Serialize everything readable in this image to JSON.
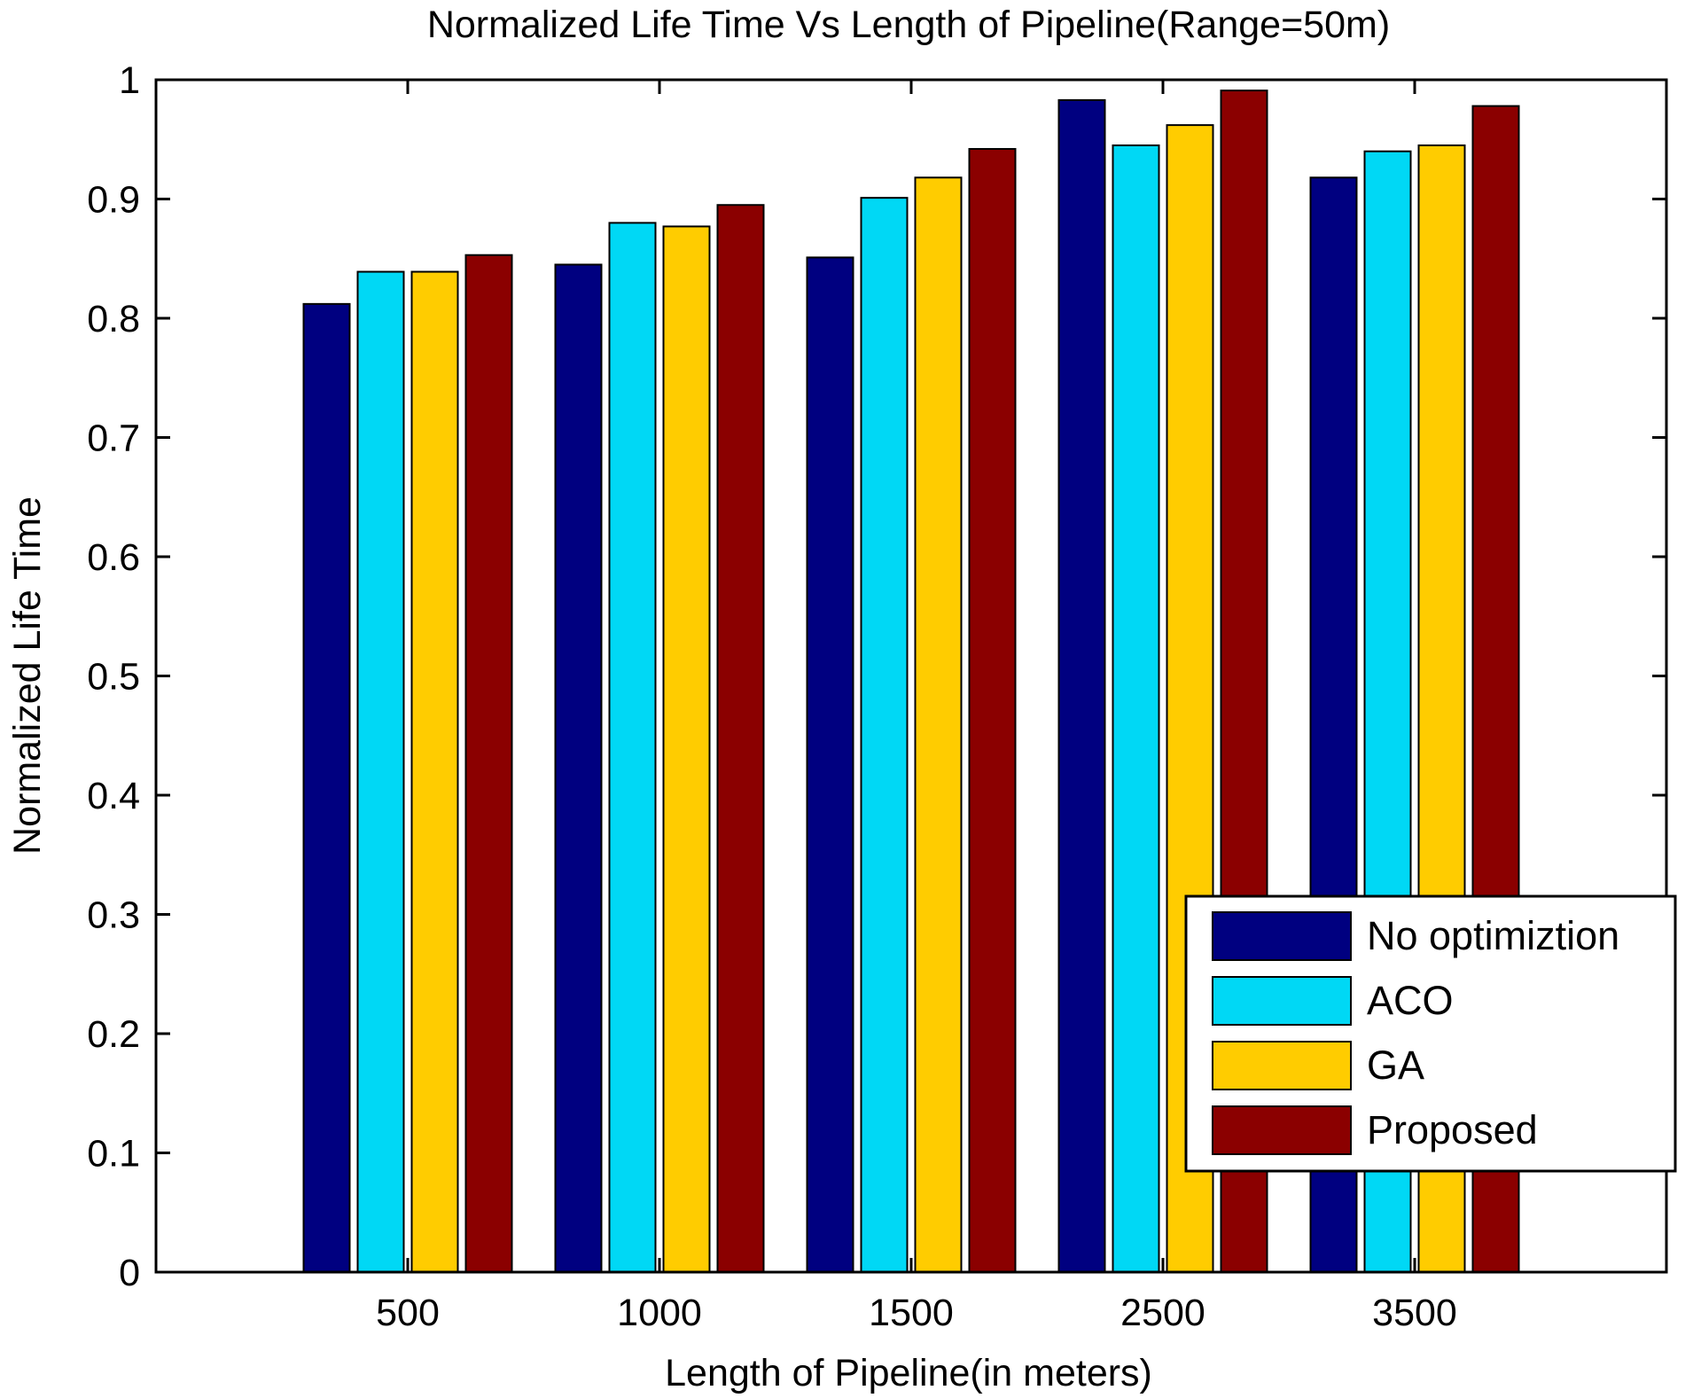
{
  "chart_data": {
    "type": "bar",
    "title": "Normalized Life Time Vs Length of Pipeline(Range=50m)",
    "xlabel": "Length of Pipeline(in meters)",
    "ylabel": "Normalized Life Time",
    "categories": [
      "500",
      "1000",
      "1500",
      "2500",
      "3500"
    ],
    "ylim": [
      0,
      1
    ],
    "yticks": [
      "0",
      "0.1",
      "0.2",
      "0.3",
      "0.4",
      "0.5",
      "0.6",
      "0.7",
      "0.8",
      "0.9",
      "1"
    ],
    "grid": false,
    "legend_position": "bottom-right",
    "series": [
      {
        "name": "No optimiztion",
        "color": "#000080",
        "values": [
          0.812,
          0.845,
          0.851,
          0.983,
          0.918
        ]
      },
      {
        "name": "ACO",
        "color": "#00d8f5",
        "values": [
          0.839,
          0.88,
          0.901,
          0.945,
          0.94
        ]
      },
      {
        "name": "GA",
        "color": "#ffcc00",
        "values": [
          0.839,
          0.877,
          0.918,
          0.962,
          0.945
        ]
      },
      {
        "name": "Proposed",
        "color": "#8b0000",
        "values": [
          0.853,
          0.895,
          0.942,
          0.991,
          0.978
        ]
      }
    ]
  }
}
